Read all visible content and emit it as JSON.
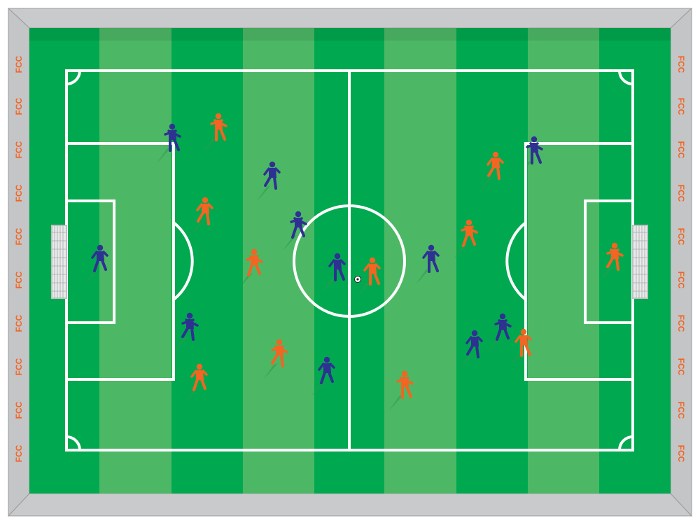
{
  "scene": {
    "title": "Top-down football pitch",
    "stand_text": "FCC",
    "team_home": "blue",
    "team_away": "orange"
  },
  "colors": {
    "stand_outer": "#bdbec0",
    "stand_inner": "#d3d4d6",
    "grass_dark": "#00a94f",
    "grass_light": "#4cb865",
    "lines": "#ffffff",
    "blue_team": "#2e3192",
    "orange_team": "#f26522",
    "shadow": "#3a9a55",
    "stand_text": "#f26522"
  },
  "players": {
    "blue": [
      "goalkeeper-left",
      "defender-1",
      "defender-2",
      "midfielder-1",
      "midfielder-2",
      "forward-centre",
      "forward-1",
      "forward-2",
      "forward-3",
      "winger-1",
      "winger-2"
    ],
    "orange": [
      "goalkeeper-right",
      "defender-1",
      "defender-2",
      "defender-3",
      "midfielder-1",
      "midfielder-2",
      "midfielder-3",
      "forward-centre",
      "forward-1",
      "winger-1",
      "winger-2"
    ]
  }
}
